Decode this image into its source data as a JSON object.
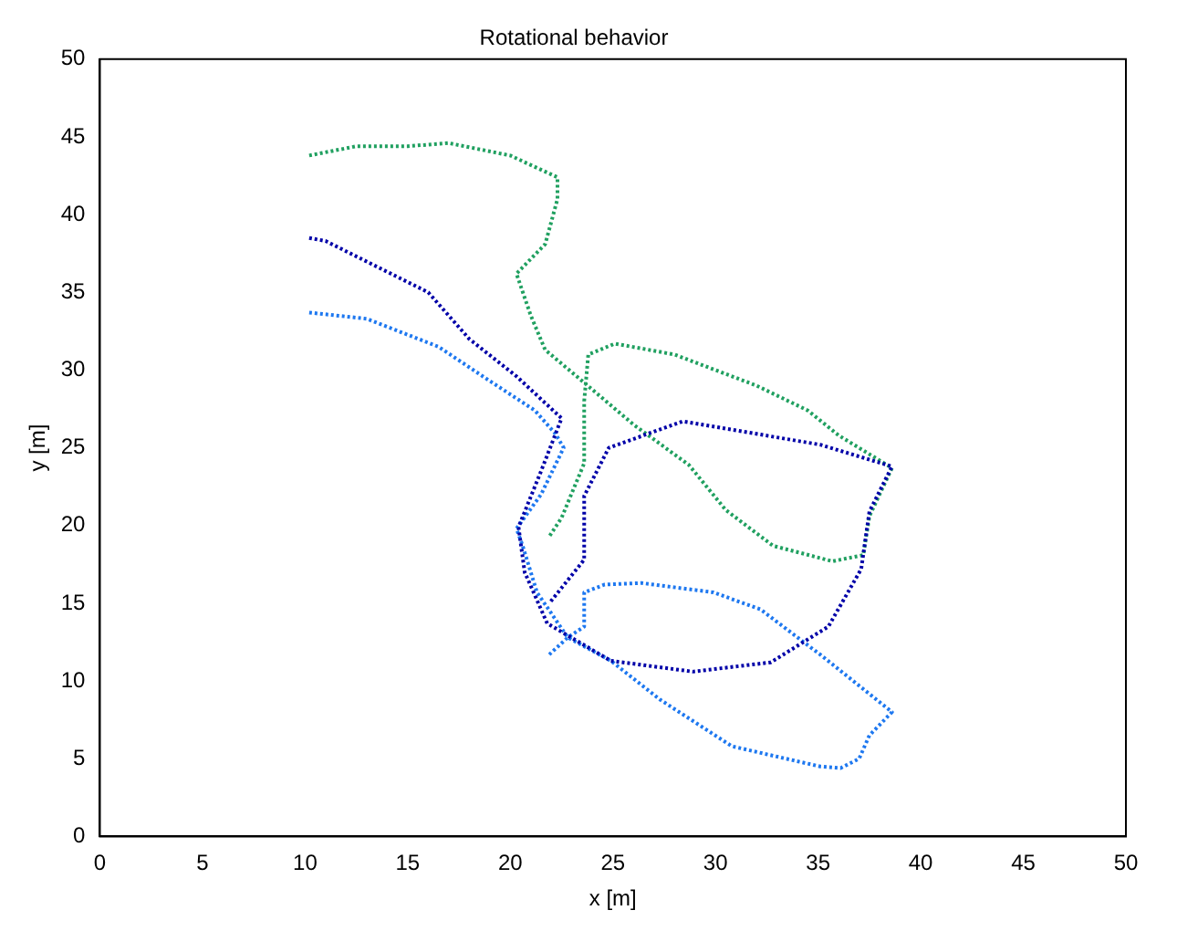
{
  "chart_data": {
    "type": "line",
    "title": "Rotational behavior",
    "xlabel": "x [m]",
    "ylabel": "y [m]",
    "xlim": [
      0,
      50
    ],
    "ylim": [
      0,
      50
    ],
    "xticks": [
      0,
      5,
      10,
      15,
      20,
      25,
      30,
      35,
      40,
      45,
      50
    ],
    "yticks": [
      0,
      5,
      10,
      15,
      20,
      25,
      30,
      35,
      40,
      45,
      50
    ],
    "grid": false,
    "legend": false,
    "marker": "none",
    "line_style": "dotted",
    "series": [
      {
        "color": "#0000a8",
        "x": [
          10.2,
          11,
          16,
          18,
          20.3,
          22.5,
          21.5,
          20.4,
          20.7,
          21.8,
          24.9,
          28.9,
          32.7,
          35.5,
          37.1,
          37.5,
          38.6,
          35.1,
          28.4,
          24.8,
          23.6,
          23.6,
          21.9
        ],
        "values": [
          38.5,
          38.3,
          35,
          32,
          29.6,
          26.9,
          23.5,
          19.9,
          17,
          13.7,
          11.3,
          10.6,
          11.2,
          13.5,
          17.2,
          20.9,
          23.8,
          25.2,
          26.7,
          25,
          21.9,
          17.8,
          15
        ]
      },
      {
        "color": "#1e78f0",
        "x": [
          10.2,
          13,
          16.5,
          19,
          21.2,
          22.2,
          22.6,
          21.5,
          20.3,
          20.6,
          21.3,
          22.8,
          24.9,
          27.3,
          30.8,
          35.1,
          36.1,
          37,
          37.5,
          38.6,
          35.1,
          32.2,
          29.9,
          26.4,
          24.6,
          23.6,
          23.6,
          22.8,
          21.9
        ],
        "values": [
          33.7,
          33.3,
          31.5,
          29.3,
          27.4,
          25.9,
          25,
          22,
          19.8,
          18.7,
          15.7,
          12.8,
          11.3,
          8.8,
          5.8,
          4.5,
          4.4,
          5,
          6.5,
          8,
          11.7,
          14.6,
          15.7,
          16.3,
          16.2,
          15.7,
          13.5,
          12.8,
          11.7
        ]
      },
      {
        "color": "#20a060",
        "x": [
          10.2,
          12.5,
          15,
          17,
          20,
          22.3,
          22.3,
          21.7,
          20.3,
          21,
          21.7,
          23.5,
          26,
          28.7,
          30.5,
          32.8,
          35.7,
          37.2,
          37.5,
          38.6,
          36,
          34.5,
          32,
          28,
          25.1,
          23.8,
          23.6,
          23.6,
          22.5,
          21.9
        ],
        "values": [
          43.8,
          44.4,
          44.4,
          44.6,
          43.8,
          42.4,
          41,
          38.1,
          36.2,
          33.5,
          31.3,
          29.3,
          26.5,
          23.9,
          21,
          18.7,
          17.7,
          18.1,
          20.6,
          23.7,
          25.8,
          27.4,
          29,
          31,
          31.7,
          31,
          28,
          24,
          20.5,
          19.3
        ]
      }
    ]
  }
}
